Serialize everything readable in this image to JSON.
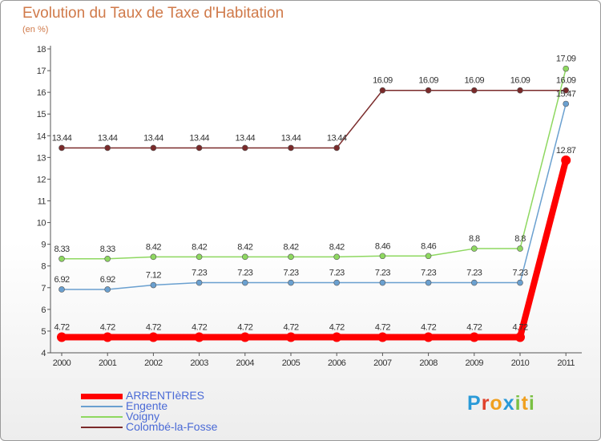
{
  "chart_data": {
    "type": "line",
    "title": "Evolution du Taux de Taxe d'Habitation",
    "subtitle": "(en %)",
    "xlabel": "",
    "ylabel": "",
    "categories": [
      "2000",
      "2001",
      "2002",
      "2003",
      "2004",
      "2005",
      "2006",
      "2007",
      "2008",
      "2009",
      "2010",
      "2011"
    ],
    "ylim": [
      4,
      18
    ],
    "yticks": [
      "4",
      "5",
      "6",
      "7",
      "8",
      "9",
      "10",
      "11",
      "12",
      "13",
      "14",
      "15",
      "16",
      "17",
      "18"
    ],
    "grid": false,
    "legend_position": "bottom-left",
    "series": [
      {
        "name": "ARRENTIèRES",
        "color": "#ff0000",
        "values": [
          4.72,
          4.72,
          4.72,
          4.72,
          4.72,
          4.72,
          4.72,
          4.72,
          4.72,
          4.72,
          4.72,
          12.87
        ],
        "labels": [
          "4.72",
          "4.72",
          "4.72",
          "4.72",
          "4.72",
          "4.72",
          "4.72",
          "4.72",
          "4.72",
          "4.72",
          "4.72",
          "12.87"
        ]
      },
      {
        "name": "Engente",
        "color": "#6aa0d0",
        "values": [
          6.92,
          6.92,
          7.12,
          7.23,
          7.23,
          7.23,
          7.23,
          7.23,
          7.23,
          7.23,
          7.23,
          15.47
        ],
        "labels": [
          "6.92",
          "6.92",
          "7.12",
          "7.23",
          "7.23",
          "7.23",
          "7.23",
          "7.23",
          "7.23",
          "7.23",
          "7.23",
          "15.47"
        ]
      },
      {
        "name": "Voigny",
        "color": "#8ed860",
        "values": [
          8.33,
          8.33,
          8.42,
          8.42,
          8.42,
          8.42,
          8.42,
          8.46,
          8.46,
          8.8,
          8.8,
          17.09
        ],
        "labels": [
          "8.33",
          "8.33",
          "8.42",
          "8.42",
          "8.42",
          "8.42",
          "8.42",
          "8.46",
          "8.46",
          "8.8",
          "8.8",
          "17.09"
        ]
      },
      {
        "name": "Colombé-la-Fosse",
        "color": "#7a2a2a",
        "values": [
          13.44,
          13.44,
          13.44,
          13.44,
          13.44,
          13.44,
          13.44,
          16.09,
          16.09,
          16.09,
          16.09,
          16.09
        ],
        "labels": [
          "13.44",
          "13.44",
          "13.44",
          "13.44",
          "13.44",
          "13.44",
          "13.44",
          "16.09",
          "16.09",
          "16.09",
          "16.09",
          "16.09"
        ]
      }
    ]
  },
  "logo": {
    "letters": [
      "P",
      "r",
      "o",
      "x",
      "i",
      "t",
      "i"
    ],
    "colors": [
      "#2a9ad8",
      "#e0402a",
      "#f0a020",
      "#2a9ad8",
      "#7ac043",
      "#f0a020",
      "#7ac043"
    ]
  }
}
